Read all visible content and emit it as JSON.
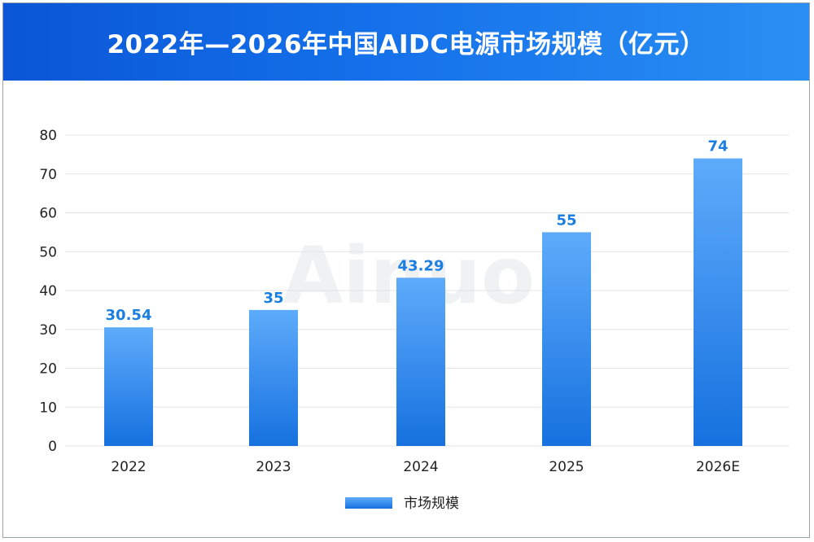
{
  "title": "2022年—2026年中国AIDC电源市场规模（亿元）",
  "watermark": "Ainuo",
  "colors": {
    "banner_start": "#0a56d6",
    "banner_end": "#2a8ff3",
    "bar_top": "#5eabfb",
    "bar_bottom": "#1671df",
    "data_label": "#1a7fe0",
    "grid": "#e3e3e3"
  },
  "chart_data": {
    "type": "bar",
    "categories": [
      "2022",
      "2023",
      "2024",
      "2025",
      "2026E"
    ],
    "series": [
      {
        "name": "市场规模",
        "values": [
          30.54,
          35,
          43.29,
          55,
          74
        ]
      }
    ],
    "data_labels": [
      "30.54",
      "35",
      "43.29",
      "55",
      "74"
    ],
    "ylim": [
      0,
      80
    ],
    "yticks": [
      0,
      10,
      20,
      30,
      40,
      50,
      60,
      70,
      80
    ],
    "grid": true,
    "legend_position": "bottom-center",
    "xlabel": "",
    "ylabel": ""
  }
}
